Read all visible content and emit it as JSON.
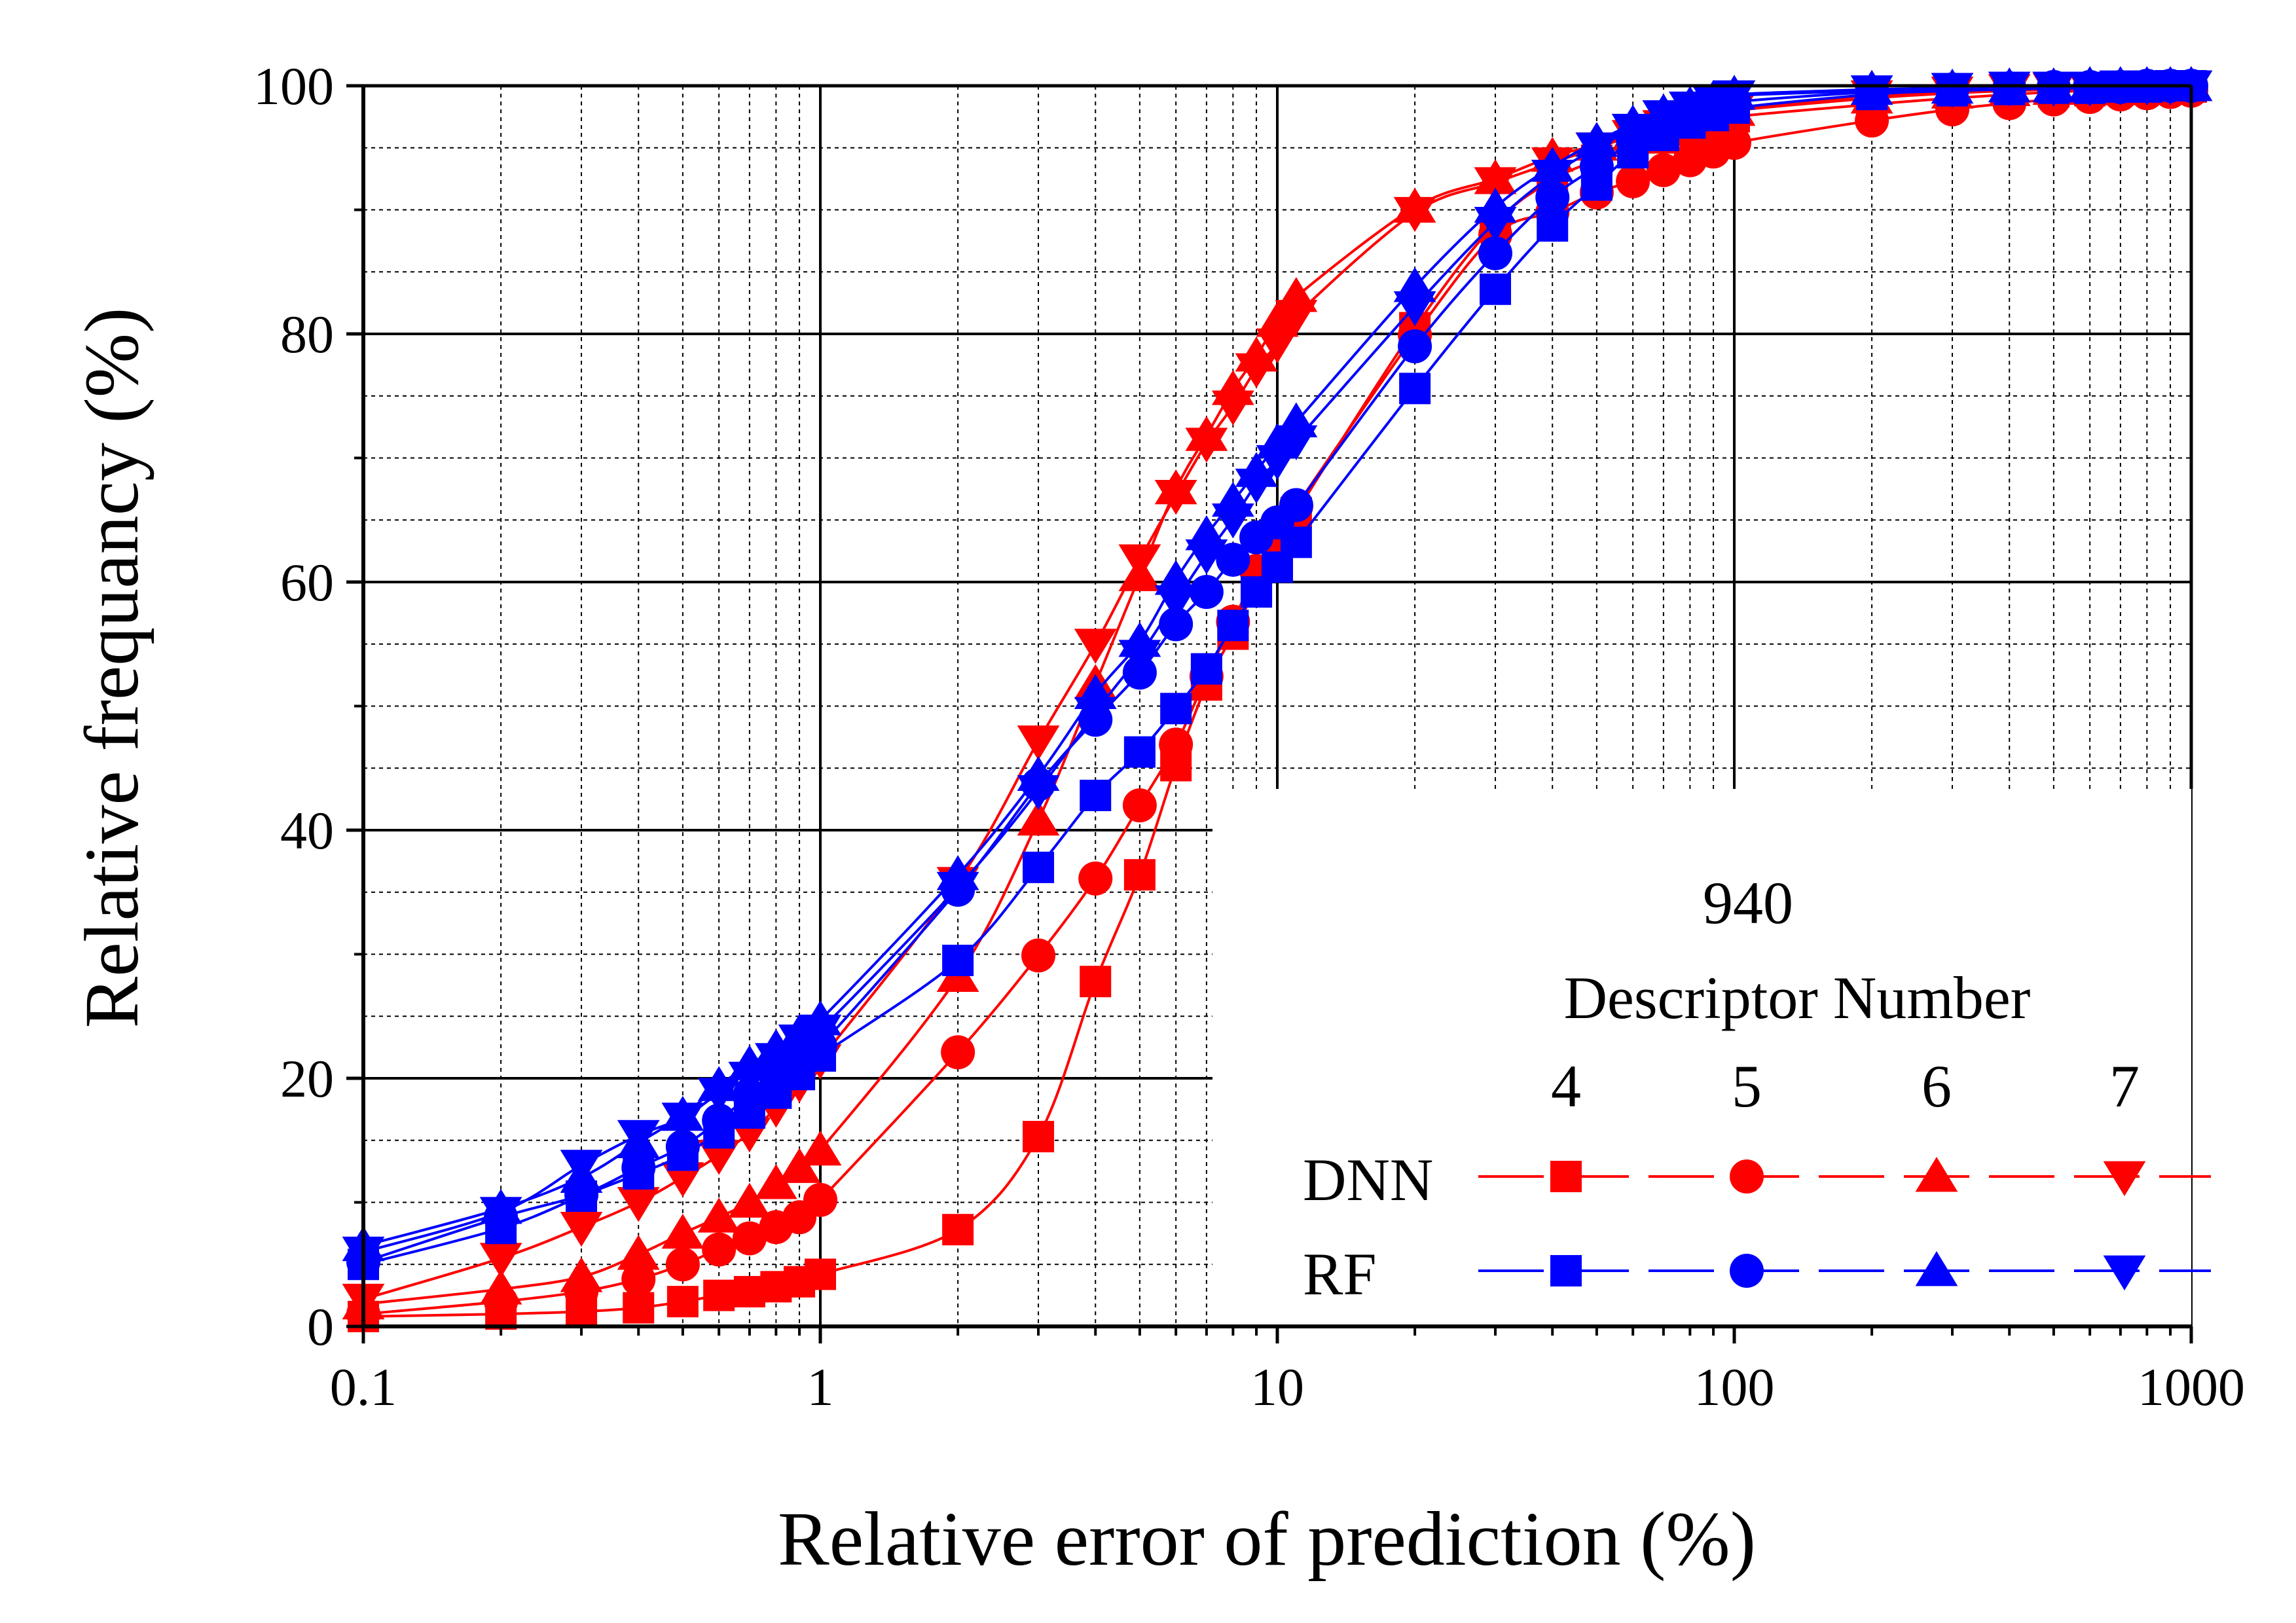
{
  "chart_data": {
    "type": "line",
    "xlabel": "Relative error of prediction (%)",
    "ylabel": "Relative frequancy (%)",
    "xscale": "log",
    "xlim": [
      0.1,
      1000
    ],
    "ylim": [
      0,
      100
    ],
    "x_ticks": [
      "0.1",
      "1",
      "10",
      "100",
      "1000"
    ],
    "y_ticks": [
      "0",
      "20",
      "40",
      "60",
      "80",
      "100"
    ],
    "grid": true,
    "legend": {
      "placement": "bottom-right",
      "title_lines": [
        "940",
        "Descriptor Number"
      ],
      "columns": [
        "4",
        "5",
        "6",
        "7"
      ],
      "rows": [
        {
          "label": "DNN",
          "color": "#ff0000"
        },
        {
          "label": "RF",
          "color": "#0000ff"
        }
      ]
    },
    "series": [
      {
        "model": "DNN",
        "descriptors": "4",
        "marker": "square",
        "color": "#ff0000",
        "x": [
          0.1,
          0.2,
          0.3,
          0.4,
          0.5,
          0.6,
          0.7,
          0.8,
          0.9,
          1,
          2,
          3,
          4,
          5,
          6,
          7,
          8,
          9,
          10,
          11,
          20,
          30,
          40,
          50,
          60,
          70,
          80,
          90,
          100,
          200,
          300,
          400,
          500,
          600,
          700,
          800,
          900,
          1000
        ],
        "y": [
          0.8,
          1,
          1.2,
          1.5,
          2,
          2.5,
          2.8,
          3.2,
          3.6,
          4.2,
          7.8,
          15.3,
          27.8,
          36.4,
          45.2,
          51.7,
          55.8,
          59.6,
          62.6,
          65.6,
          80.5,
          88.9,
          92.4,
          94.0,
          95.0,
          95.8,
          96.4,
          97.0,
          97.5,
          98.5,
          99.0,
          99.3,
          99.5,
          99.6,
          99.7,
          99.8,
          99.8,
          99.9
        ]
      },
      {
        "model": "DNN",
        "descriptors": "5",
        "marker": "circle",
        "color": "#ff0000",
        "x": [
          0.1,
          0.2,
          0.3,
          0.4,
          0.5,
          0.6,
          0.7,
          0.8,
          0.9,
          1,
          2,
          3,
          4,
          5,
          6,
          7,
          8,
          9,
          10,
          11,
          20,
          30,
          40,
          50,
          60,
          70,
          80,
          90,
          100,
          200,
          300,
          400,
          500,
          600,
          700,
          800,
          900,
          1000
        ],
        "y": [
          1,
          2,
          2.8,
          3.8,
          5,
          6.2,
          7.1,
          8,
          8.8,
          10.2,
          22.1,
          29.9,
          36.1,
          42,
          46.9,
          52.4,
          56.8,
          60.9,
          63.8,
          66.1,
          79.9,
          88,
          89.8,
          91.4,
          92.3,
          93.2,
          94,
          94.7,
          95.4,
          97.2,
          98.1,
          98.6,
          98.9,
          99.1,
          99.3,
          99.4,
          99.5,
          99.6
        ]
      },
      {
        "model": "DNN",
        "descriptors": "6",
        "marker": "triangle-up",
        "color": "#ff0000",
        "x": [
          0.1,
          0.2,
          0.3,
          0.4,
          0.5,
          0.6,
          0.7,
          0.8,
          0.9,
          1,
          2,
          3,
          4,
          5,
          6,
          7,
          8,
          9,
          10,
          11,
          20,
          30,
          40,
          50,
          60,
          70,
          80,
          90,
          100,
          200,
          300,
          400,
          500,
          600,
          700,
          800,
          900,
          1000
        ],
        "y": [
          1.8,
          3,
          4,
          5.8,
          7.5,
          8.8,
          10,
          11.5,
          12.8,
          14.2,
          28.2,
          40.8,
          51.8,
          60.5,
          67.5,
          71.8,
          75.5,
          78.2,
          81,
          83,
          90.2,
          92.5,
          94.3,
          95.2,
          96,
          96.8,
          97.2,
          97.6,
          98,
          99,
          99.4,
          99.6,
          99.7,
          99.8,
          99.8,
          99.9,
          99.9,
          100
        ]
      },
      {
        "model": "DNN",
        "descriptors": "7",
        "marker": "triangle-down",
        "color": "#ff0000",
        "x": [
          0.1,
          0.2,
          0.3,
          0.4,
          0.5,
          0.6,
          0.7,
          0.8,
          0.9,
          1,
          2,
          3,
          4,
          5,
          6,
          7,
          8,
          9,
          10,
          11,
          20,
          30,
          40,
          50,
          60,
          70,
          80,
          90,
          100,
          200,
          300,
          400,
          500,
          600,
          700,
          800,
          900,
          1000
        ],
        "y": [
          2.2,
          5.5,
          8,
          10,
          12,
          13.8,
          15.6,
          17.6,
          19.6,
          21.5,
          35.8,
          47.2,
          55,
          61.8,
          67,
          71.2,
          74.2,
          77.2,
          79.2,
          81.5,
          89.8,
          92.2,
          93.8,
          95,
          96,
          96.8,
          97.4,
          97.8,
          98.2,
          99.2,
          99.5,
          99.7,
          99.8,
          99.8,
          99.9,
          99.9,
          100,
          100
        ]
      },
      {
        "model": "RF",
        "descriptors": "4",
        "marker": "square",
        "color": "#0000ff",
        "x": [
          0.1,
          0.2,
          0.3,
          0.4,
          0.5,
          0.6,
          0.7,
          0.8,
          0.9,
          1,
          2,
          3,
          4,
          5,
          6,
          7,
          8,
          9,
          10,
          11,
          20,
          30,
          40,
          50,
          60,
          70,
          80,
          90,
          100,
          200,
          300,
          400,
          500,
          600,
          700,
          800,
          900,
          1000
        ],
        "y": [
          5,
          7.9,
          10.5,
          12.3,
          13.8,
          15.6,
          17.2,
          18.8,
          20.3,
          21.8,
          29.5,
          37,
          42.8,
          46.3,
          49.8,
          53,
          56.5,
          59.2,
          61.2,
          63.2,
          75.6,
          83.6,
          88.7,
          92,
          94.6,
          96,
          97,
          97.6,
          98.2,
          99.3,
          99.6,
          99.7,
          99.8,
          99.8,
          99.9,
          99.9,
          100,
          100
        ]
      },
      {
        "model": "RF",
        "descriptors": "5",
        "marker": "circle",
        "color": "#0000ff",
        "x": [
          0.1,
          0.2,
          0.3,
          0.4,
          0.5,
          0.6,
          0.7,
          0.8,
          0.9,
          1,
          2,
          3,
          4,
          5,
          6,
          7,
          8,
          9,
          10,
          11,
          20,
          30,
          40,
          50,
          60,
          70,
          80,
          90,
          100,
          200,
          300,
          400,
          500,
          600,
          700,
          800,
          900,
          1000
        ],
        "y": [
          5.2,
          8.8,
          10.6,
          12.8,
          14.5,
          16.6,
          18.6,
          20.1,
          21.4,
          22.6,
          35.2,
          43.7,
          48.9,
          52.7,
          56.6,
          59.2,
          61.8,
          63.6,
          64.8,
          66.2,
          79,
          86.5,
          91,
          93.5,
          95.6,
          96.8,
          97.6,
          98.2,
          98.7,
          99.5,
          99.7,
          99.8,
          99.9,
          99.9,
          99.9,
          100,
          100,
          100
        ]
      },
      {
        "model": "RF",
        "descriptors": "6",
        "marker": "triangle-up",
        "color": "#0000ff",
        "x": [
          0.1,
          0.2,
          0.3,
          0.4,
          0.5,
          0.6,
          0.7,
          0.8,
          0.9,
          1,
          2,
          3,
          4,
          5,
          6,
          7,
          8,
          9,
          10,
          11,
          20,
          30,
          40,
          50,
          60,
          70,
          80,
          90,
          100,
          200,
          300,
          400,
          500,
          600,
          700,
          800,
          900,
          1000
        ],
        "y": [
          6.5,
          9.5,
          12,
          14.8,
          17,
          19.4,
          21.1,
          22.4,
          23.6,
          24.7,
          36.4,
          44.4,
          51,
          55.2,
          60.2,
          63.8,
          66.5,
          68.9,
          71.2,
          72.9,
          83.8,
          90.2,
          93.5,
          95.5,
          96.9,
          97.8,
          98.4,
          98.9,
          99.3,
          99.7,
          99.8,
          99.9,
          99.9,
          100,
          100,
          100,
          100,
          100
        ]
      },
      {
        "model": "RF",
        "descriptors": "7",
        "marker": "triangle-down",
        "color": "#0000ff",
        "x": [
          0.1,
          0.2,
          0.3,
          0.4,
          0.5,
          0.6,
          0.7,
          0.8,
          0.9,
          1,
          2,
          3,
          4,
          5,
          6,
          7,
          8,
          9,
          10,
          11,
          20,
          30,
          40,
          50,
          60,
          70,
          80,
          90,
          100,
          200,
          300,
          400,
          500,
          600,
          700,
          800,
          900,
          1000
        ],
        "y": [
          6,
          9.2,
          13,
          15.4,
          16.8,
          18.8,
          20.1,
          21.6,
          23.1,
          23.9,
          35.4,
          43.2,
          49.5,
          54.1,
          58.5,
          62.2,
          65.1,
          67.9,
          69.8,
          71.4,
          82.2,
          89,
          92.8,
          95,
          96.5,
          97.6,
          98.3,
          98.8,
          99.2,
          99.6,
          99.8,
          99.9,
          99.9,
          99.9,
          100,
          100,
          100,
          100
        ]
      }
    ]
  }
}
